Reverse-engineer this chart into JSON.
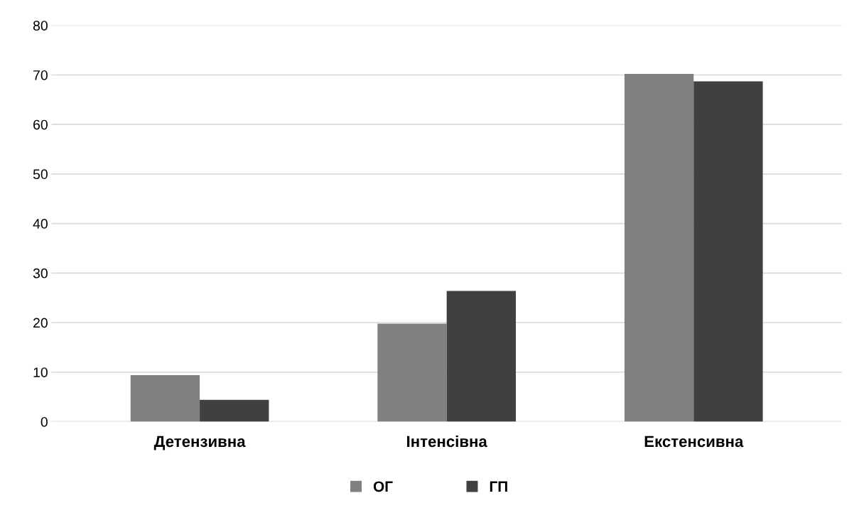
{
  "chart_data": {
    "type": "bar",
    "categories": [
      "Детензивна",
      "Інтенсівна",
      "Екстенсивна"
    ],
    "series": [
      {
        "name": "ОГ",
        "color": "#808080",
        "values": [
          9.4,
          19.8,
          70.2
        ]
      },
      {
        "name": "ГП",
        "color": "#404040",
        "values": [
          4.4,
          26.4,
          68.7
        ]
      }
    ],
    "ylim": [
      0,
      80
    ],
    "yticks": [
      0,
      10,
      20,
      30,
      40,
      50,
      60,
      70,
      80
    ],
    "grid": "y",
    "legend": "bottom"
  }
}
